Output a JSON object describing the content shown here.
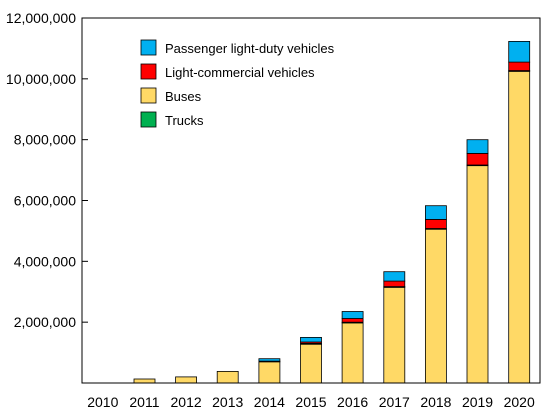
{
  "chart_data": {
    "type": "bar",
    "stacked": true,
    "categories": [
      "2010",
      "2011",
      "2012",
      "2013",
      "2014",
      "2015",
      "2016",
      "2017",
      "2018",
      "2019",
      "2020"
    ],
    "series": [
      {
        "name": "Buses",
        "color": "#FFD966",
        "values": [
          0,
          130000,
          200000,
          380000,
          700000,
          1280000,
          1980000,
          3150000,
          5060000,
          7150000,
          10250000
        ]
      },
      {
        "name": "Trucks",
        "color": "#00B050",
        "values": [
          0,
          0,
          0,
          0,
          0,
          20000,
          20000,
          20000,
          20000,
          20000,
          20000
        ]
      },
      {
        "name": "Light-commercial vehicles",
        "color": "#FF0000",
        "values": [
          0,
          0,
          0,
          0,
          20000,
          50000,
          120000,
          180000,
          300000,
          380000,
          280000
        ]
      },
      {
        "name": "Passenger light-duty vehicles",
        "color": "#00B0F0",
        "values": [
          0,
          0,
          0,
          0,
          80000,
          150000,
          230000,
          310000,
          450000,
          450000,
          680000
        ]
      }
    ],
    "legend_order": [
      "Passenger light-duty vehicles",
      "Light-commercial vehicles",
      "Buses",
      "Trucks"
    ],
    "ylim": [
      0,
      12000000
    ],
    "yticks": [
      2000000,
      4000000,
      6000000,
      8000000,
      10000000,
      12000000
    ],
    "ytick_labels": [
      "2,000,000",
      "4,000,000",
      "6,000,000",
      "8,000,000",
      "10,000,000",
      "12,000,000"
    ],
    "grid": false,
    "legend_position": "top-left inside plot",
    "title": "",
    "xlabel": "",
    "ylabel": ""
  }
}
